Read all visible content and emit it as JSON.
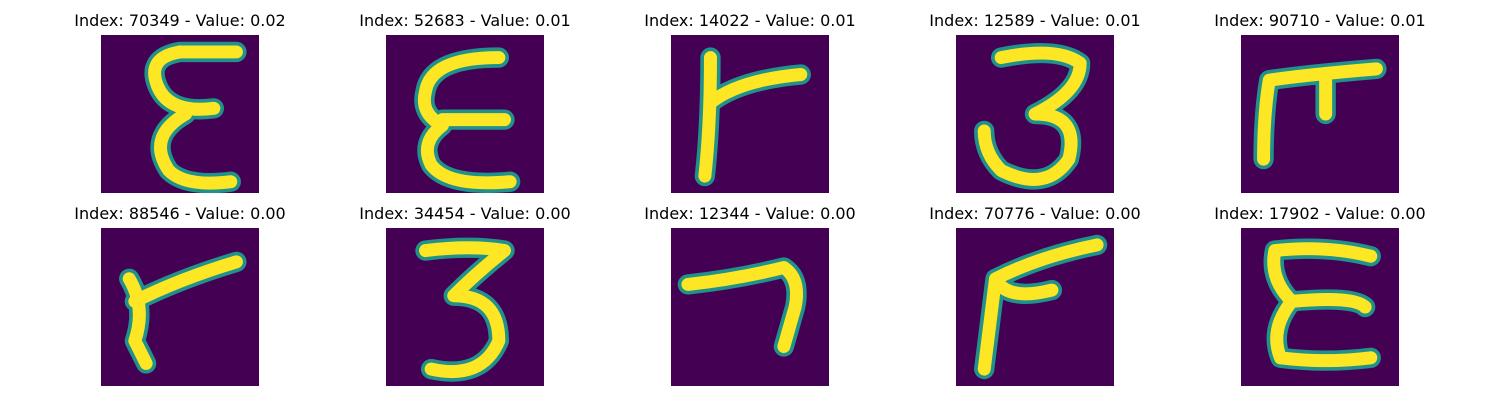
{
  "chart_data": {
    "type": "heatmap",
    "colormap": "viridis",
    "panels": [
      {
        "title": "Index: 70349 - Value: 0.02",
        "glyph": "epsilon"
      },
      {
        "title": "Index: 52683 - Value: 0.01",
        "glyph": "open-e"
      },
      {
        "title": "Index: 14022 - Value: 0.01",
        "glyph": "r-hook"
      },
      {
        "title": "Index: 12589 - Value: 0.01",
        "glyph": "three"
      },
      {
        "title": "Index: 90710 - Value: 0.01",
        "glyph": "pi-hook"
      },
      {
        "title": "Index: 88546 - Value: 0.00",
        "glyph": "r-tilted"
      },
      {
        "title": "Index: 34454 - Value: 0.00",
        "glyph": "three-flat"
      },
      {
        "title": "Index: 12344 - Value: 0.00",
        "glyph": "seven"
      },
      {
        "title": "Index: 70776 - Value: 0.00",
        "glyph": "r-open"
      },
      {
        "title": "Index: 17902 - Value: 0.00",
        "glyph": "epsilon-wide"
      }
    ],
    "background_color": "#440154",
    "stroke_color": "#fde725",
    "edge_color": "#21918c"
  }
}
